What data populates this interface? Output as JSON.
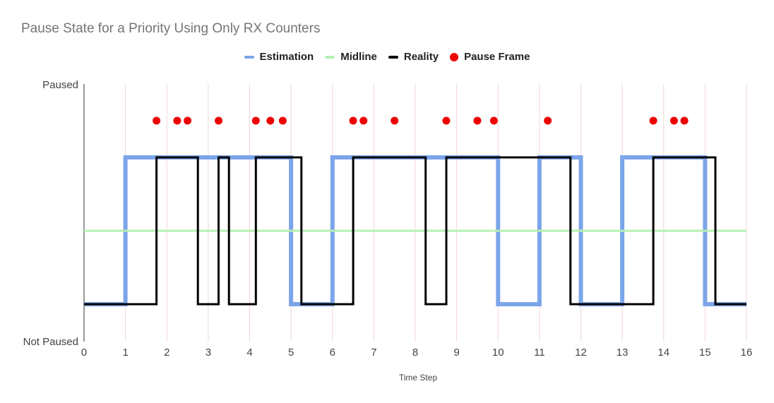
{
  "chart_data": {
    "type": "line",
    "title": "Pause State for a Priority Using Only RX Counters",
    "xlabel": "Time Step",
    "ylabel": "",
    "xlim": [
      0,
      16
    ],
    "x_ticks": [
      "0",
      "1",
      "2",
      "3",
      "4",
      "5",
      "6",
      "7",
      "8",
      "9",
      "10",
      "11",
      "12",
      "13",
      "14",
      "15",
      "16"
    ],
    "y_tick_labels": {
      "top": "Paused",
      "bottom": "Not Paused"
    },
    "vertical_gridlines": true,
    "legend_position": "top-center",
    "series": [
      {
        "name": "Estimation",
        "color": "#7ba5ea",
        "style": "step",
        "points": [
          [
            0,
            0
          ],
          [
            1,
            0
          ],
          [
            1,
            1
          ],
          [
            5,
            1
          ],
          [
            5,
            0
          ],
          [
            6,
            0
          ],
          [
            6,
            1
          ],
          [
            10,
            1
          ],
          [
            10,
            0
          ],
          [
            11,
            0
          ],
          [
            11,
            1
          ],
          [
            12,
            1
          ],
          [
            12,
            0
          ],
          [
            13,
            0
          ],
          [
            13,
            1
          ],
          [
            15,
            1
          ],
          [
            15,
            0
          ],
          [
            16,
            0
          ]
        ]
      },
      {
        "name": "Midline",
        "color": "#b6f0b0",
        "style": "line",
        "points": [
          [
            0,
            0.5
          ],
          [
            16,
            0.5
          ]
        ]
      },
      {
        "name": "Reality",
        "color": "#000000",
        "style": "step",
        "points": [
          [
            0,
            0
          ],
          [
            1.75,
            0
          ],
          [
            1.75,
            1
          ],
          [
            2.75,
            1
          ],
          [
            2.75,
            0
          ],
          [
            3.25,
            0
          ],
          [
            3.25,
            1
          ],
          [
            3.5,
            1
          ],
          [
            3.5,
            0
          ],
          [
            4.15,
            0
          ],
          [
            4.15,
            1
          ],
          [
            5.25,
            1
          ],
          [
            5.25,
            0
          ],
          [
            6.5,
            0
          ],
          [
            6.5,
            1
          ],
          [
            8.25,
            1
          ],
          [
            8.25,
            0
          ],
          [
            8.75,
            0
          ],
          [
            8.75,
            1
          ],
          [
            11.75,
            1
          ],
          [
            11.75,
            0
          ],
          [
            13.75,
            0
          ],
          [
            13.75,
            1
          ],
          [
            15.25,
            1
          ],
          [
            15.25,
            0
          ],
          [
            16,
            0
          ]
        ]
      },
      {
        "name": "Pause Frame",
        "color": "#ee0000",
        "style": "scatter",
        "x": [
          1.75,
          2.25,
          2.5,
          3.25,
          4.15,
          4.5,
          4.8,
          6.5,
          6.75,
          7.5,
          8.75,
          9.5,
          9.9,
          11.2,
          13.75,
          14.25,
          14.5
        ],
        "y": 1.25
      }
    ]
  }
}
